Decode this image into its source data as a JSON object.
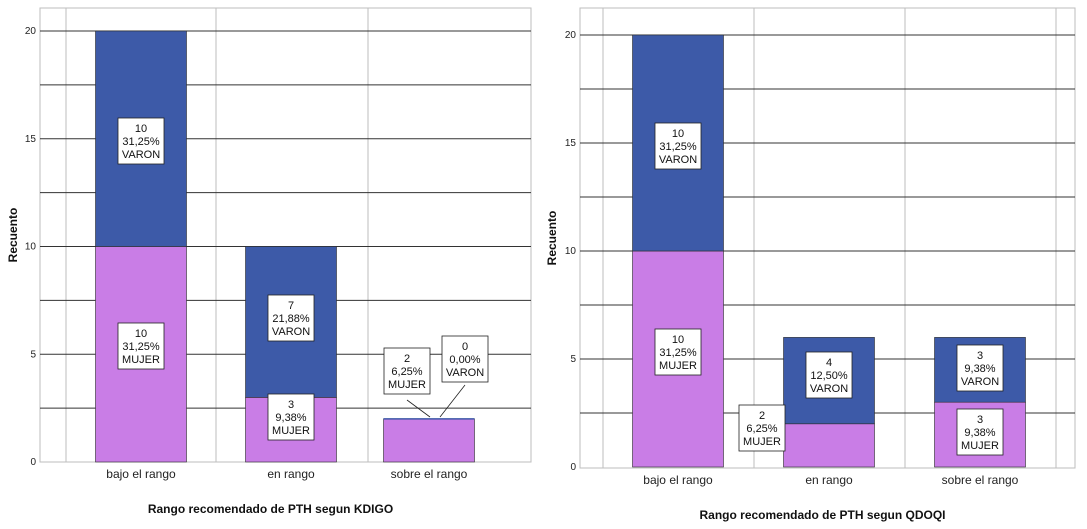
{
  "chart_data": [
    {
      "type": "bar",
      "stacked": true,
      "ylabel": "Recuento",
      "xlabel": "Rango recomendado de PTH segun KDIGO",
      "ylim": [
        0,
        20
      ],
      "yticks": [
        "0",
        "5",
        "10",
        "15",
        "20"
      ],
      "grid": true,
      "categories": [
        "bajo el rango",
        "en rango",
        "sobre el rango"
      ],
      "series": [
        {
          "name": "MUJER",
          "color": "#c97de6",
          "values": [
            10,
            3,
            2
          ],
          "percent": [
            "31,25%",
            "9,38%",
            "6,25%"
          ],
          "count_labels": [
            "10",
            "3",
            "2"
          ]
        },
        {
          "name": "VARON",
          "color": "#3d5aa8",
          "values": [
            10,
            7,
            0
          ],
          "percent": [
            "31,25%",
            "21,88%",
            "0,00%"
          ],
          "count_labels": [
            "10",
            "7",
            "0"
          ]
        }
      ]
    },
    {
      "type": "bar",
      "stacked": true,
      "ylabel": "Recuento",
      "xlabel": "Rango recomendado de PTH segun QDOQI",
      "ylim": [
        0,
        20
      ],
      "yticks": [
        "0",
        "5",
        "10",
        "15",
        "20"
      ],
      "grid": true,
      "categories": [
        "bajo el rango",
        "en rango",
        "sobre el rango"
      ],
      "series": [
        {
          "name": "MUJER",
          "color": "#c97de6",
          "values": [
            10,
            2,
            3
          ],
          "percent": [
            "31,25%",
            "6,25%",
            "9,38%"
          ],
          "count_labels": [
            "10",
            "2",
            "3"
          ]
        },
        {
          "name": "VARON",
          "color": "#3d5aa8",
          "values": [
            10,
            4,
            3
          ],
          "percent": [
            "31,25%",
            "12,50%",
            "9,38%"
          ],
          "count_labels": [
            "10",
            "4",
            "3"
          ]
        }
      ]
    }
  ]
}
